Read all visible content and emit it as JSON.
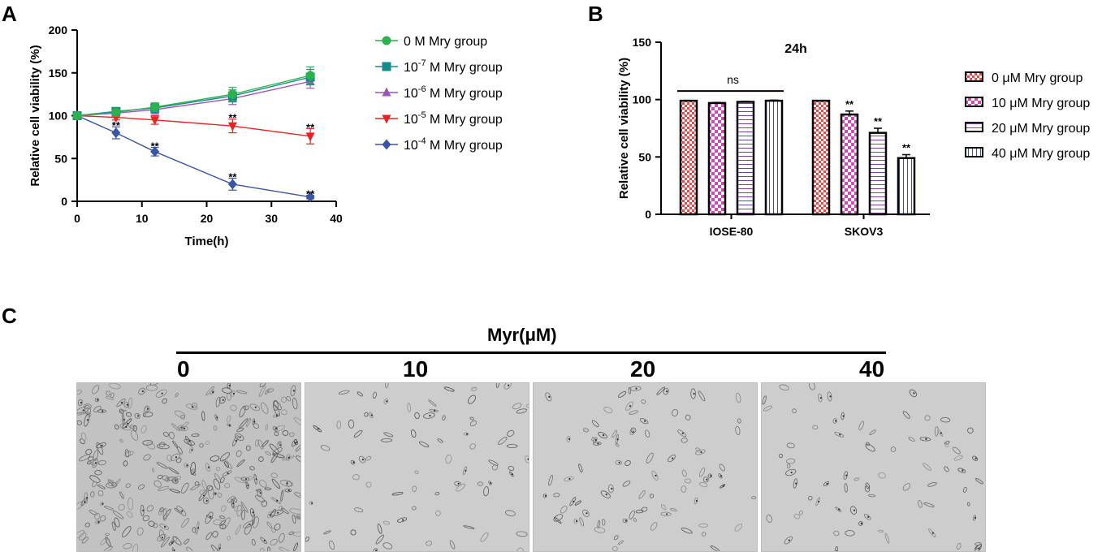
{
  "panels": {
    "a": "A",
    "b": "B",
    "c": "C"
  },
  "colors": {
    "green": "#2bb24c",
    "teal": "#158a8c",
    "purple": "#9c55b5",
    "red": "#ee2020",
    "blue": "#3a54a8",
    "bar_red": "#e84a4a",
    "bar_magenta": "#d14ab8",
    "bar_purple": "#7c3fa0",
    "bar_blue": "#3a4ea8"
  },
  "chart_data": [
    {
      "type": "line",
      "title": "",
      "xlabel": "Time(h)",
      "ylabel": "Relative cell viability (%)",
      "xlim": [
        0,
        40
      ],
      "ylim": [
        0,
        200
      ],
      "xticks": [
        "0",
        "10",
        "20",
        "30",
        "40"
      ],
      "yticks": [
        "0",
        "50",
        "100",
        "150",
        "200"
      ],
      "series": [
        {
          "name": "0 M Mry group",
          "base": "0 M Mry group",
          "sup": "",
          "suffix": "",
          "color": "#2bb24c",
          "marker": "circle",
          "x": [
            0,
            6,
            12,
            24,
            36
          ],
          "y": [
            100,
            104,
            110,
            125,
            147
          ],
          "err": [
            0,
            3,
            5,
            8,
            10
          ]
        },
        {
          "name": "10-7 M Mry group",
          "base": "10",
          "sup": "-7",
          "suffix": " M Mry group",
          "color": "#158a8c",
          "marker": "square",
          "x": [
            0,
            6,
            12,
            24,
            36
          ],
          "y": [
            100,
            105,
            109,
            123,
            145
          ],
          "err": [
            0,
            3,
            5,
            7,
            9
          ]
        },
        {
          "name": "10-6 M Mry group",
          "base": "10",
          "sup": "-6",
          "suffix": " M Mry group",
          "color": "#9c55b5",
          "marker": "triangle",
          "x": [
            0,
            6,
            12,
            24,
            36
          ],
          "y": [
            100,
            103,
            107,
            120,
            140
          ],
          "err": [
            0,
            3,
            5,
            7,
            8
          ]
        },
        {
          "name": "10-5 M Mry group",
          "base": "10",
          "sup": "-5",
          "suffix": " M Mry group",
          "color": "#ee2020",
          "marker": "triangle-down",
          "x": [
            0,
            6,
            12,
            24,
            36
          ],
          "y": [
            100,
            98,
            95,
            88,
            76
          ],
          "err": [
            0,
            3,
            5,
            8,
            9
          ]
        },
        {
          "name": "10-4 M Mry group",
          "base": "10",
          "sup": "-4",
          "suffix": " M Mry group",
          "color": "#3a54a8",
          "marker": "diamond",
          "x": [
            0,
            6,
            12,
            24,
            36
          ],
          "y": [
            100,
            80,
            58,
            20,
            5
          ],
          "err": [
            0,
            7,
            5,
            7,
            2
          ]
        }
      ],
      "annotations": [
        {
          "x": 6,
          "y": 88,
          "text": "**"
        },
        {
          "x": 12,
          "y": 64,
          "text": "**"
        },
        {
          "x": 24,
          "y": 97,
          "text": "**"
        },
        {
          "x": 24,
          "y": 28,
          "text": "**"
        },
        {
          "x": 36,
          "y": 86,
          "text": "**"
        },
        {
          "x": 36,
          "y": 8,
          "text": "**"
        }
      ],
      "legend": "right"
    },
    {
      "type": "bar",
      "title": "24h",
      "xlabel": "",
      "ylabel": "Relative cell viability (%)",
      "ylim": [
        0,
        150
      ],
      "yticks": [
        "0",
        "50",
        "100",
        "150"
      ],
      "categories": [
        "IOSE-80",
        "SKOV3"
      ],
      "series": [
        {
          "name": "0 μM Mry group",
          "color": "#e84a4a",
          "pattern": "checker-red",
          "values": [
            99,
            99
          ],
          "err": [
            0,
            0
          ]
        },
        {
          "name": "10 μM Mry group",
          "color": "#d14ab8",
          "pattern": "checker-magenta",
          "values": [
            97,
            87
          ],
          "err": [
            0.5,
            3
          ]
        },
        {
          "name": "20 μM Mry group",
          "color": "#7c3fa0",
          "pattern": "h-lines",
          "values": [
            98,
            71
          ],
          "err": [
            0.5,
            4
          ]
        },
        {
          "name": "40 μM Mry group",
          "color": "#3a4ea8",
          "pattern": "v-lines",
          "values": [
            99,
            49
          ],
          "err": [
            0.5,
            3
          ]
        }
      ],
      "annotations": [
        {
          "text": "ns",
          "group": 0
        },
        {
          "text": "**",
          "group": 1,
          "bar": 1
        },
        {
          "text": "**",
          "group": 1,
          "bar": 2
        },
        {
          "text": "**",
          "group": 1,
          "bar": 3
        }
      ],
      "legend": "right"
    }
  ],
  "panel_c": {
    "title": "Myr(μM)",
    "concentrations": [
      "0",
      "10",
      "20",
      "40"
    ]
  }
}
